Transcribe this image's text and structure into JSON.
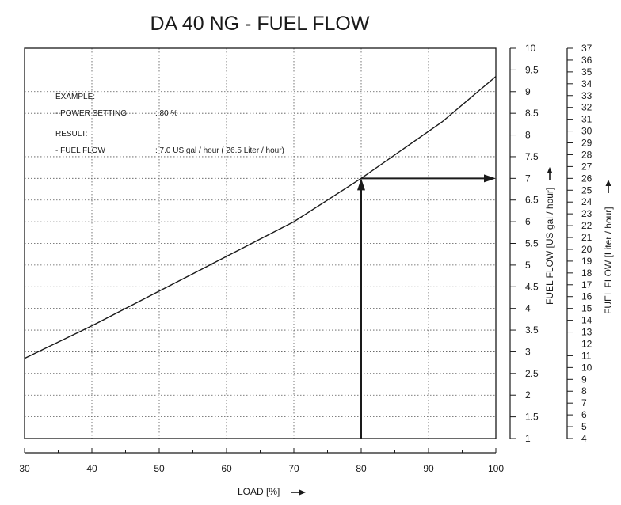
{
  "chart_data": {
    "type": "line",
    "title": "DA 40 NG - FUEL FLOW",
    "xlabel": "LOAD [%]",
    "ylabel": "FUEL FLOW [US gal / hour]",
    "ylabel2": "FUEL FLOW [Liter / hour]",
    "xlim": [
      30,
      100
    ],
    "ylim": [
      1,
      10
    ],
    "ylim2": [
      4,
      37
    ],
    "x_ticks": [
      30,
      40,
      50,
      60,
      70,
      80,
      90,
      100
    ],
    "x_tick_labels": [
      "30",
      "40",
      "50",
      "60",
      "70",
      "80",
      "90",
      "100"
    ],
    "y_ticks": [
      1,
      1.5,
      2,
      2.5,
      3,
      3.5,
      4,
      4.5,
      5,
      5.5,
      6,
      6.5,
      7,
      7.5,
      8,
      8.5,
      9,
      9.5,
      10
    ],
    "y_tick_labels": [
      "1",
      "1.5",
      "2",
      "2.5",
      "3",
      "3.5",
      "4",
      "4.5",
      "5",
      "5.5",
      "6",
      "6.5",
      "7",
      "7.5",
      "8",
      "8.5",
      "9",
      "9.5",
      "10"
    ],
    "y2_tick_labels": [
      "4",
      "5",
      "6",
      "7",
      "8",
      "9",
      "10",
      "11",
      "12",
      "13",
      "14",
      "15",
      "16",
      "17",
      "18",
      "19",
      "20",
      "21",
      "22",
      "23",
      "24",
      "25",
      "26",
      "27",
      "28",
      "29",
      "30",
      "31",
      "32",
      "33",
      "34",
      "35",
      "36",
      "37"
    ],
    "grid": true,
    "series": [
      {
        "x": [
          30,
          40,
          50,
          60,
          70,
          80,
          92,
          100
        ],
        "y": [
          2.85,
          3.6,
          4.4,
          5.2,
          6.0,
          7.0,
          8.3,
          9.35
        ]
      }
    ],
    "example": {
      "load": 80,
      "fuel_flow": 7.0
    },
    "annotations": {
      "example_label": "EXAMPLE:",
      "power_setting_label": "-  POWER SETTING",
      "power_setting_value": ":   80 %",
      "result_label": "RESULT:",
      "fuel_flow_label": "-  FUEL FLOW",
      "fuel_flow_value": ":  7.0 US gal / hour ( 26.5 Liter / hour)"
    }
  }
}
